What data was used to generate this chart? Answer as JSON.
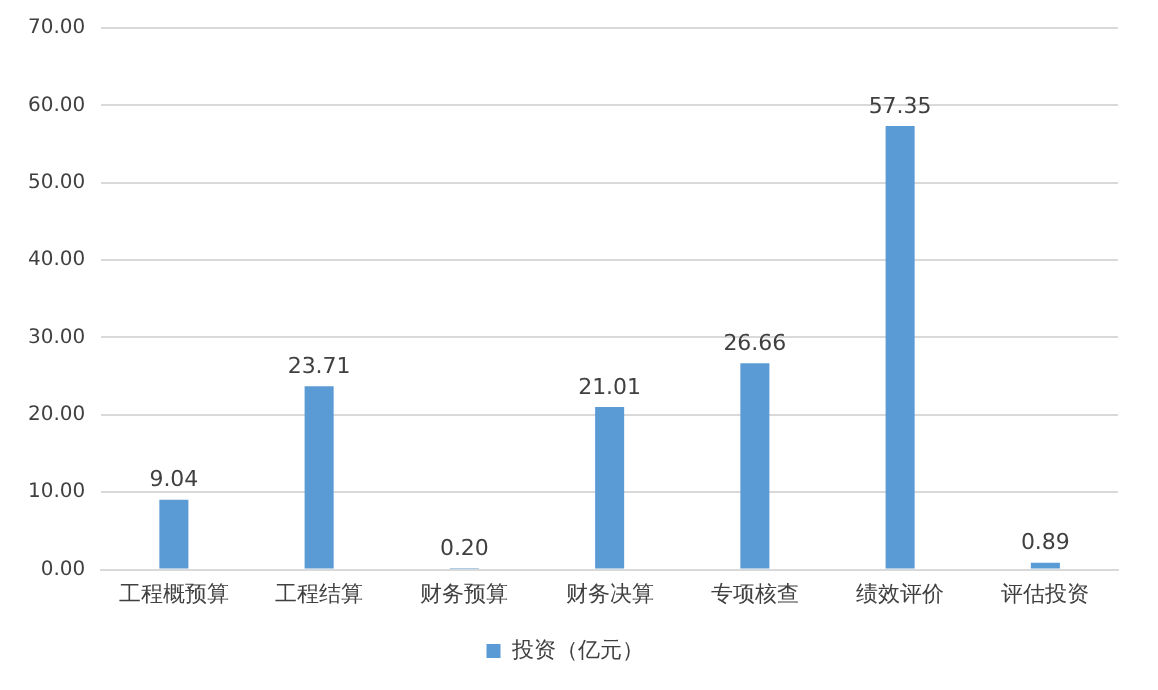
{
  "chart_data": {
    "type": "bar",
    "categories": [
      "工程概预算",
      "工程结算",
      "财务预算",
      "财务决算",
      "专项核查",
      "绩效评价",
      "评估投资"
    ],
    "series": [
      {
        "name": "投资（亿元）",
        "color": "#5b9bd5",
        "values": [
          9.04,
          23.71,
          0.2,
          21.01,
          26.66,
          57.35,
          0.89
        ],
        "value_labels": [
          "9.04",
          "23.71",
          "0.20",
          "21.01",
          "26.66",
          "57.35",
          "0.89"
        ]
      }
    ],
    "ylim": [
      0,
      70
    ],
    "yticks": [
      {
        "value": 0,
        "label": "0.00"
      },
      {
        "value": 10,
        "label": "10.00"
      },
      {
        "value": 20,
        "label": "20.00"
      },
      {
        "value": 30,
        "label": "30.00"
      },
      {
        "value": 40,
        "label": "40.00"
      },
      {
        "value": 50,
        "label": "50.00"
      },
      {
        "value": 60,
        "label": "60.00"
      },
      {
        "value": 70,
        "label": "70.00"
      }
    ],
    "grid": "y",
    "legend": "bottom"
  }
}
